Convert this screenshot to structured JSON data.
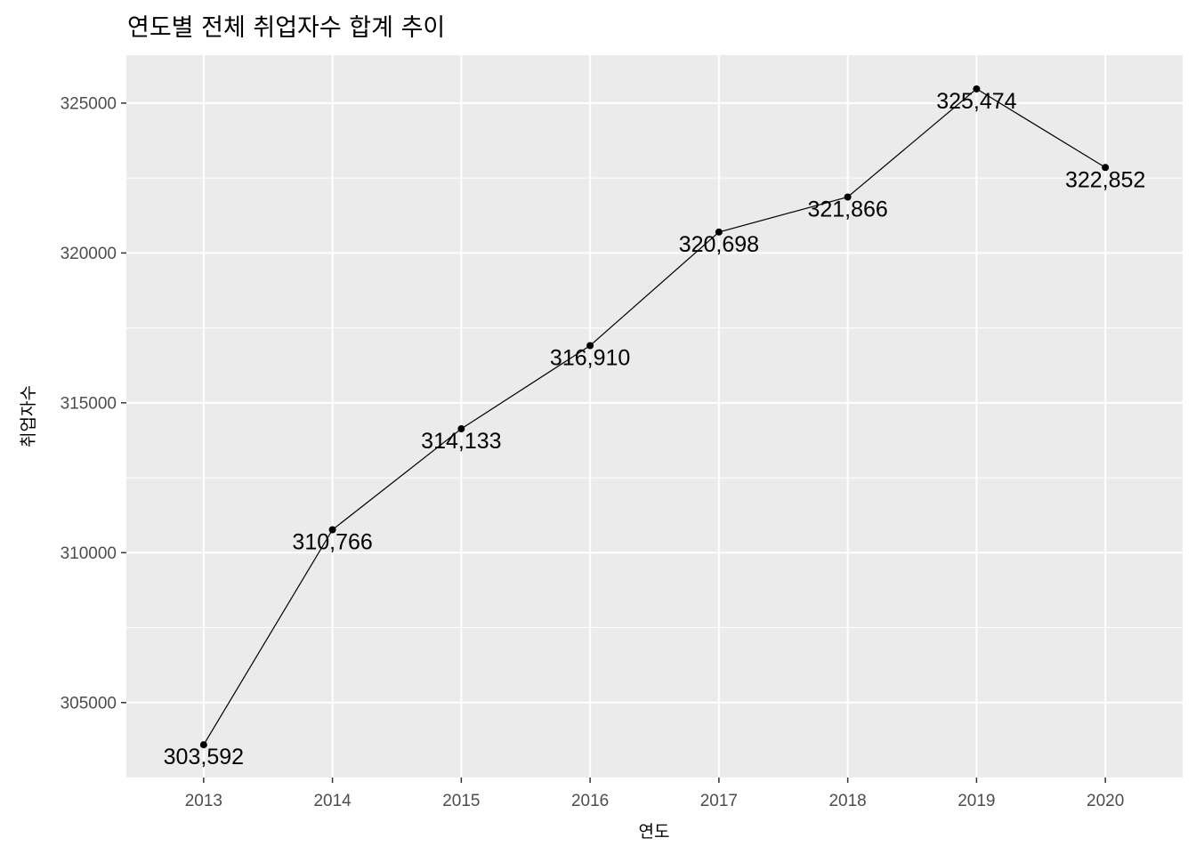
{
  "chart_data": {
    "type": "line",
    "title": "연도별 전체 취업자수 합계 추이",
    "xlabel": "연도",
    "ylabel": "취업자수",
    "x": [
      2013,
      2014,
      2015,
      2016,
      2017,
      2018,
      2019,
      2020
    ],
    "x_tick_labels": [
      "2013",
      "2014",
      "2015",
      "2016",
      "2017",
      "2018",
      "2019",
      "2020"
    ],
    "y": [
      303592,
      310766,
      314133,
      316910,
      320698,
      321866,
      325474,
      322852
    ],
    "data_labels": [
      "303,592",
      "310,766",
      "314,133",
      "316,910",
      "320,698",
      "321,866",
      "325,474",
      "322,852"
    ],
    "y_ticks": [
      305000,
      310000,
      315000,
      320000,
      325000
    ],
    "y_tick_labels": [
      "305000",
      "310000",
      "315000",
      "320000",
      "325000"
    ],
    "xlim": [
      2012.4,
      2020.6
    ],
    "ylim": [
      302500,
      326600
    ],
    "grid": true,
    "colors": {
      "panel": "#ebebeb",
      "grid": "#ffffff",
      "line": "#000000",
      "point": "#000000",
      "text": "#000000",
      "tick_text": "#4d4d4d"
    }
  }
}
